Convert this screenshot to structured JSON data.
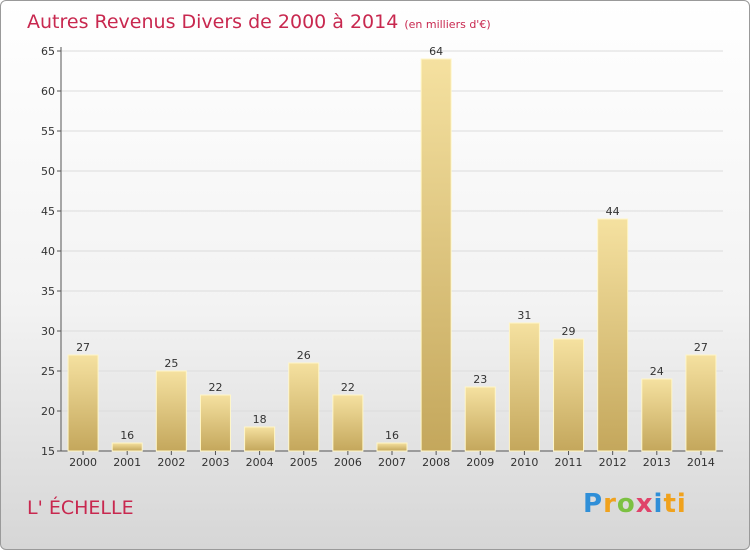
{
  "header": {
    "title": "Autres Revenus Divers de 2000 à 2014",
    "unit": "(en milliers d'€)"
  },
  "footer": {
    "place": "L' ÉCHELLE",
    "logo": [
      "P",
      "r",
      "o",
      "x",
      "i",
      "ti"
    ]
  },
  "colors": {
    "title": "#c8284f",
    "bar_light": "#f3dc95",
    "bar_dark": "#c9ac5f",
    "axis": "#555555"
  },
  "chart_data": {
    "type": "bar",
    "categories": [
      "2000",
      "2001",
      "2002",
      "2003",
      "2004",
      "2005",
      "2006",
      "2007",
      "2008",
      "2009",
      "2010",
      "2011",
      "2012",
      "2013",
      "2014"
    ],
    "values": [
      27,
      16,
      25,
      22,
      18,
      26,
      22,
      16,
      64,
      23,
      31,
      29,
      44,
      24,
      27
    ],
    "ylim": [
      15,
      65
    ],
    "yticks": [
      15,
      20,
      25,
      30,
      35,
      40,
      45,
      50,
      55,
      60,
      65
    ],
    "title": "Autres Revenus Divers de 2000 à 2014",
    "xlabel": "",
    "ylabel": "",
    "grid": true
  }
}
